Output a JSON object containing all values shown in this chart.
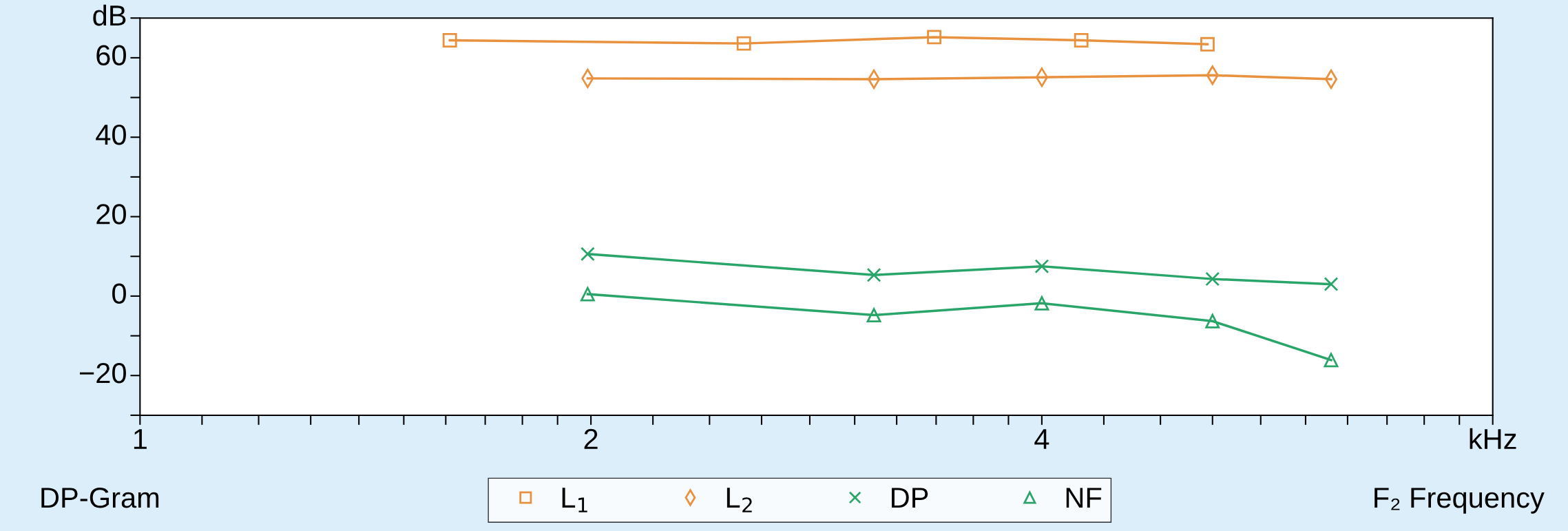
{
  "chart_data": {
    "type": "line",
    "title": "DP-Gram",
    "xlabel": "F₂ Frequency",
    "log": "x",
    "xlim": [
      1,
      8
    ],
    "ylim": [
      -30,
      70
    ],
    "xticks": [
      1,
      {
        "value": 1.1,
        "label": null
      },
      {
        "value": 1.2,
        "label": null
      },
      {
        "value": 1.3,
        "label": null
      },
      {
        "value": 1.4,
        "label": null
      },
      {
        "value": 1.5,
        "label": null
      },
      {
        "value": 1.6,
        "label": null
      },
      {
        "value": 1.7,
        "label": null
      },
      {
        "value": 1.8,
        "label": null
      },
      {
        "value": 1.9,
        "label": null
      },
      2,
      {
        "value": 2.2,
        "label": null
      },
      {
        "value": 2.4,
        "label": null
      },
      {
        "value": 2.6,
        "label": null
      },
      {
        "value": 2.8,
        "label": null
      },
      {
        "value": 3.0,
        "label": null
      },
      {
        "value": 3.2,
        "label": null
      },
      {
        "value": 3.4,
        "label": null
      },
      {
        "value": 3.6,
        "label": null
      },
      {
        "value": 3.8,
        "label": null
      },
      4,
      {
        "value": 4.4,
        "label": null
      },
      {
        "value": 4.8,
        "label": null
      },
      {
        "value": 5.2,
        "label": null
      },
      {
        "value": 5.6,
        "label": null
      },
      {
        "value": 6.0,
        "label": null
      },
      {
        "value": 6.4,
        "label": null
      },
      {
        "value": 6.8,
        "label": null
      },
      {
        "value": 7.2,
        "label": null
      },
      {
        "value": 7.6,
        "label": null
      },
      {
        "value": 8,
        "label": "kHz"
      }
    ],
    "yticks": [
      {
        "value": -30,
        "label": null
      },
      -20,
      {
        "value": -10,
        "label": null
      },
      0,
      {
        "value": 10,
        "label": null
      },
      20,
      {
        "value": 30,
        "label": null
      },
      40,
      {
        "value": 50,
        "label": null
      },
      60,
      {
        "value": 70,
        "label": "dB"
      }
    ],
    "grid": false,
    "legend": "bottom",
    "line_style": "solid",
    "series": [
      {
        "name": "L$_{1}$",
        "color": "#e8913f",
        "marker": "square",
        "x": [
          1.61,
          2.53,
          3.39,
          4.25,
          5.16
        ],
        "values": [
          64.4,
          63.6,
          65.2,
          64.4,
          63.4
        ]
      },
      {
        "name": "L$_{2}$",
        "color": "#e8913f",
        "marker": "diamond",
        "x": [
          1.99,
          3.09,
          4.0,
          5.2,
          6.24
        ],
        "values": [
          54.8,
          54.6,
          55.1,
          55.6,
          54.6
        ]
      },
      {
        "name": "DP",
        "color": "#2aa56a",
        "marker": "cross",
        "x": [
          1.99,
          3.09,
          4.0,
          5.2,
          6.24
        ],
        "values": [
          10.6,
          5.3,
          7.5,
          4.3,
          3.0
        ]
      },
      {
        "name": "NF",
        "color": "#2aa56a",
        "marker": "triangle",
        "x": [
          1.99,
          3.09,
          4.0,
          5.2,
          6.24
        ],
        "values": [
          0.5,
          -4.8,
          -1.8,
          -6.3,
          -16.1
        ]
      }
    ]
  }
}
